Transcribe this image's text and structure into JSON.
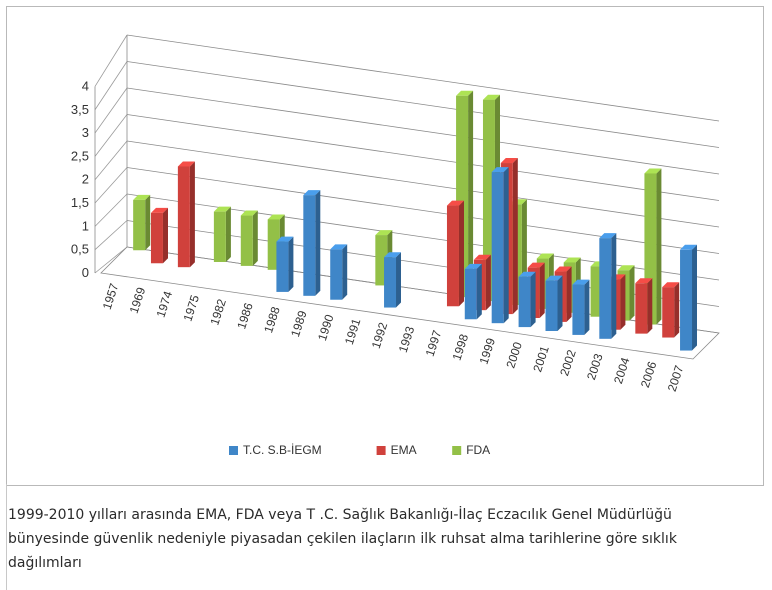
{
  "chart_data": {
    "type": "bar",
    "subtype": "3d-clustered-column",
    "categories": [
      "1957",
      "1969",
      "1974",
      "1975",
      "1982",
      "1986",
      "1988",
      "1989",
      "1990",
      "1991",
      "1992",
      "1993",
      "1997",
      "1998",
      "1999",
      "2000",
      "2001",
      "2002",
      "2003",
      "2004",
      "2006",
      "2007"
    ],
    "series": [
      {
        "name": "T.C. S.B-İEGM",
        "color": "#3f86c8",
        "values": [
          0,
          0,
          0,
          0,
          0,
          0,
          1,
          2,
          1,
          0,
          1,
          0,
          0,
          1,
          3,
          1,
          1,
          1,
          2,
          0,
          0,
          2
        ]
      },
      {
        "name": "EMA",
        "color": "#d0413c",
        "values": [
          0,
          1,
          2,
          0,
          0,
          0,
          0,
          0,
          0,
          0,
          0,
          0,
          2,
          1,
          3,
          1,
          1,
          0,
          1,
          1,
          1,
          0
        ]
      },
      {
        "name": "FDA",
        "color": "#93c047",
        "values": [
          1,
          0,
          0,
          1,
          1,
          1,
          0,
          0,
          0,
          1,
          0,
          0,
          4,
          4,
          2,
          1,
          1,
          1,
          1,
          3,
          0,
          0
        ]
      }
    ],
    "ytick_labels": [
      "0",
      "0,5",
      "1",
      "1,5",
      "2",
      "2,5",
      "3",
      "3,5",
      "4"
    ],
    "ylim": [
      0,
      4
    ],
    "grid": true,
    "legend_position": "bottom"
  },
  "caption": " 1999-2010 yılları arasında EMA, FDA veya T .C. Sağlık Bakanlığı-İlaç Eczacılık Genel Müdürlüğü\nbünyesinde güvenlik nedeniyle piyasadan çekilen ilaçların ilk ruhsat alma tarihlerine göre sıklık\ndağılımları"
}
